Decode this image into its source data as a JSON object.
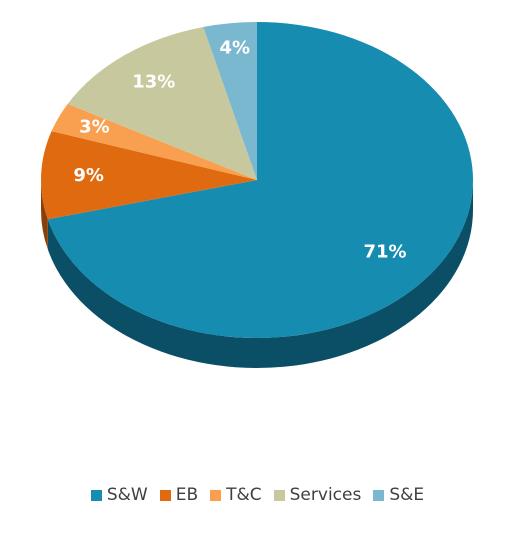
{
  "chart_data": {
    "type": "pie",
    "style": "3d",
    "legend_position": "bottom",
    "slices": [
      {
        "name": "S&W",
        "value": 71,
        "label": "71%",
        "color": "#158CB0",
        "dark": "#0A4F66"
      },
      {
        "name": "EB",
        "value": 9,
        "label": "9%",
        "color": "#E06A10",
        "dark": "#8A3F08"
      },
      {
        "name": "T&C",
        "value": 3,
        "label": "3%",
        "color": "#F9A050",
        "dark": "#A8612A"
      },
      {
        "name": "Services",
        "value": 13,
        "label": "13%",
        "color": "#C8C89F",
        "dark": "#7E7E5E"
      },
      {
        "name": "S&E",
        "value": 4,
        "label": "4%",
        "color": "#7AB8D0",
        "dark": "#3D7A90"
      }
    ]
  }
}
